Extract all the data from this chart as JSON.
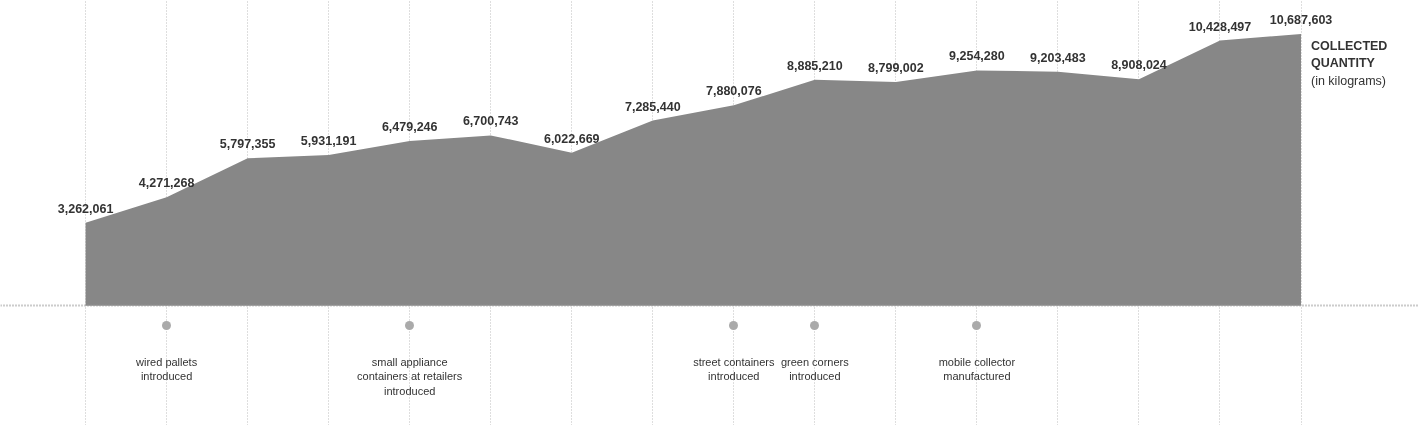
{
  "chart_data": {
    "type": "area",
    "title": "COLLECTED QUANTITY",
    "subtitle": "(in kilograms)",
    "categories": [
      null,
      null,
      null,
      null,
      null,
      null,
      null,
      null,
      null,
      null,
      null,
      null,
      null,
      null,
      null,
      null
    ],
    "series": [
      {
        "color": "#878787",
        "values": [
          3262061,
          4271268,
          5797355,
          5931191,
          6479246,
          6700743,
          6022669,
          7285440,
          7880076,
          8885210,
          8799002,
          9254280,
          9203483,
          8908024,
          10428497,
          10687603
        ],
        "value_labels": [
          "3,262,061",
          "4,271,268",
          "5,797,355",
          "5,931,191",
          "6,479,246",
          "6,700,743",
          "6,022,669",
          "7,285,440",
          "7,880,076",
          "8,885,210",
          "8,799,002",
          "9,254,280",
          "9,203,483",
          "8,908,024",
          "10,428,497",
          "10,687,603"
        ]
      }
    ],
    "grid": "x",
    "tick_labels": false,
    "annotations": [
      "wired pallets introduced",
      "small appliance containers at retailers introduced",
      "street containers introduced",
      "green corners introduced",
      "mobile collector manufactured"
    ]
  }
}
